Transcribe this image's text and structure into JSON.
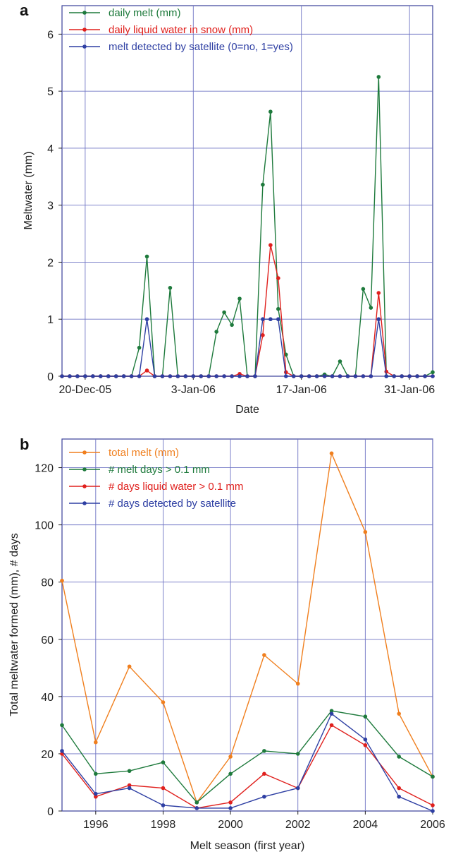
{
  "chart_data": [
    {
      "panel": "a",
      "type": "line",
      "xlabel": "Date",
      "ylabel": "Meltwater (mm)",
      "ylim": [
        0,
        6.5
      ],
      "yticks": [
        0,
        1,
        2,
        3,
        4,
        5,
        6
      ],
      "xlim": [
        "2005-12-17",
        "2006-02-03"
      ],
      "xticks": [
        {
          "date": "2005-12-20",
          "label": "20-Dec-05"
        },
        {
          "date": "2006-01-03",
          "label": "3-Jan-06"
        },
        {
          "date": "2006-01-17",
          "label": "17-Jan-06"
        },
        {
          "date": "2006-01-31",
          "label": "31-Jan-06"
        }
      ],
      "grid": true,
      "legend_position": "top-left",
      "series": [
        {
          "name": "daily melt (mm)",
          "color": "#1e7a3c",
          "x": [
            "2005-12-17",
            "2005-12-18",
            "2005-12-19",
            "2005-12-20",
            "2005-12-21",
            "2005-12-22",
            "2005-12-23",
            "2005-12-24",
            "2005-12-25",
            "2005-12-26",
            "2005-12-27",
            "2005-12-28",
            "2005-12-29",
            "2005-12-30",
            "2005-12-31",
            "2006-01-01",
            "2006-01-02",
            "2006-01-03",
            "2006-01-04",
            "2006-01-05",
            "2006-01-06",
            "2006-01-07",
            "2006-01-08",
            "2006-01-09",
            "2006-01-10",
            "2006-01-11",
            "2006-01-12",
            "2006-01-13",
            "2006-01-14",
            "2006-01-15",
            "2006-01-16",
            "2006-01-17",
            "2006-01-18",
            "2006-01-19",
            "2006-01-20",
            "2006-01-21",
            "2006-01-22",
            "2006-01-23",
            "2006-01-24",
            "2006-01-25",
            "2006-01-26",
            "2006-01-27",
            "2006-01-28",
            "2006-01-29",
            "2006-01-30",
            "2006-01-31",
            "2006-02-01",
            "2006-02-02",
            "2006-02-03"
          ],
          "y": [
            0,
            0,
            0,
            0,
            0,
            0,
            0,
            0,
            0,
            0,
            0.5,
            2.1,
            0,
            0,
            1.55,
            0,
            0,
            0,
            0,
            0,
            0.78,
            1.12,
            0.9,
            1.36,
            0,
            0,
            3.36,
            4.64,
            1.18,
            0.38,
            0,
            0,
            0,
            0,
            0.03,
            0,
            0.26,
            0,
            0,
            1.53,
            1.2,
            5.25,
            0,
            0,
            0,
            0,
            0,
            0,
            0.07
          ]
        },
        {
          "name": "daily liquid water in snow (mm)",
          "color": "#e0201d",
          "x": [
            "2005-12-17",
            "2005-12-18",
            "2005-12-19",
            "2005-12-20",
            "2005-12-21",
            "2005-12-22",
            "2005-12-23",
            "2005-12-24",
            "2005-12-25",
            "2005-12-26",
            "2005-12-27",
            "2005-12-28",
            "2005-12-29",
            "2005-12-30",
            "2005-12-31",
            "2006-01-01",
            "2006-01-02",
            "2006-01-03",
            "2006-01-04",
            "2006-01-05",
            "2006-01-06",
            "2006-01-07",
            "2006-01-08",
            "2006-01-09",
            "2006-01-10",
            "2006-01-11",
            "2006-01-12",
            "2006-01-13",
            "2006-01-14",
            "2006-01-15",
            "2006-01-16",
            "2006-01-17",
            "2006-01-18",
            "2006-01-19",
            "2006-01-20",
            "2006-01-21",
            "2006-01-22",
            "2006-01-23",
            "2006-01-24",
            "2006-01-25",
            "2006-01-26",
            "2006-01-27",
            "2006-01-28",
            "2006-01-29",
            "2006-01-30",
            "2006-01-31",
            "2006-02-01",
            "2006-02-02",
            "2006-02-03"
          ],
          "y": [
            0,
            0,
            0,
            0,
            0,
            0,
            0,
            0,
            0,
            0,
            0,
            0.1,
            0,
            0,
            0,
            0,
            0,
            0,
            0,
            0,
            0,
            0,
            0,
            0.04,
            0,
            0,
            0.72,
            2.3,
            1.72,
            0.07,
            0,
            0,
            0,
            0,
            0,
            0,
            0,
            0,
            0,
            0,
            0,
            1.46,
            0.08,
            0,
            0,
            0,
            0,
            0,
            0
          ]
        },
        {
          "name": "melt detected by satellite (0=no, 1=yes)",
          "color": "#2e3fa3",
          "x": [
            "2005-12-17",
            "2005-12-18",
            "2005-12-19",
            "2005-12-20",
            "2005-12-21",
            "2005-12-22",
            "2005-12-23",
            "2005-12-24",
            "2005-12-25",
            "2005-12-26",
            "2005-12-27",
            "2005-12-28",
            "2005-12-29",
            "2005-12-30",
            "2005-12-31",
            "2006-01-01",
            "2006-01-02",
            "2006-01-03",
            "2006-01-04",
            "2006-01-05",
            "2006-01-06",
            "2006-01-07",
            "2006-01-08",
            "2006-01-09",
            "2006-01-10",
            "2006-01-11",
            "2006-01-12",
            "2006-01-13",
            "2006-01-14",
            "2006-01-15",
            "2006-01-16",
            "2006-01-17",
            "2006-01-18",
            "2006-01-19",
            "2006-01-20",
            "2006-01-21",
            "2006-01-22",
            "2006-01-23",
            "2006-01-24",
            "2006-01-25",
            "2006-01-26",
            "2006-01-27",
            "2006-01-28",
            "2006-01-29",
            "2006-01-30",
            "2006-01-31",
            "2006-02-01",
            "2006-02-02",
            "2006-02-03"
          ],
          "y": [
            0,
            0,
            0,
            0,
            0,
            0,
            0,
            0,
            0,
            0,
            0,
            1,
            0,
            0,
            0,
            0,
            0,
            0,
            0,
            0,
            0,
            0,
            0,
            0,
            0,
            0,
            1,
            1,
            1,
            0,
            0,
            0,
            0,
            0,
            0,
            0,
            0,
            0,
            0,
            0,
            0,
            1,
            0,
            0,
            0,
            0,
            0,
            0,
            0
          ]
        }
      ]
    },
    {
      "panel": "b",
      "type": "line",
      "xlabel": "Melt season (first year)",
      "ylabel": "Total meltwater formed (mm), # days",
      "ylim": [
        0,
        130
      ],
      "yticks": [
        0,
        20,
        40,
        60,
        80,
        100,
        120
      ],
      "xlim": [
        1995,
        2006
      ],
      "xticks": [
        1996,
        1998,
        2000,
        2002,
        2004,
        2006
      ],
      "grid": true,
      "legend_position": "top-left",
      "series": [
        {
          "name": "total melt (mm)",
          "color": "#f07f1e",
          "x": [
            1995,
            1996,
            1997,
            1998,
            1999,
            2000,
            2001,
            2002,
            2003,
            2004,
            2005,
            2006
          ],
          "y": [
            80.5,
            24,
            50.5,
            38,
            3,
            19,
            54.5,
            44.5,
            125,
            97.5,
            34,
            12
          ]
        },
        {
          "name": "# melt days > 0.1 mm",
          "color": "#1e7a3c",
          "x": [
            1995,
            1996,
            1997,
            1998,
            1999,
            2000,
            2001,
            2002,
            2003,
            2004,
            2005,
            2006
          ],
          "y": [
            30,
            13,
            14,
            17,
            3,
            13,
            21,
            20,
            35,
            33,
            19,
            12
          ]
        },
        {
          "name": "# days liquid water > 0.1 mm",
          "color": "#e0201d",
          "x": [
            1995,
            1996,
            1997,
            1998,
            1999,
            2000,
            2001,
            2002,
            2003,
            2004,
            2005,
            2006
          ],
          "y": [
            20,
            5,
            9,
            8,
            1,
            3,
            13,
            8,
            30,
            23,
            8,
            2
          ]
        },
        {
          "name": "# days detected by satellite",
          "color": "#2e3fa3",
          "x": [
            1995,
            1996,
            1997,
            1998,
            1999,
            2000,
            2001,
            2002,
            2003,
            2004,
            2005,
            2006
          ],
          "y": [
            21,
            6,
            8,
            2,
            1,
            1,
            5,
            8,
            34,
            25,
            5,
            0
          ]
        }
      ]
    }
  ]
}
